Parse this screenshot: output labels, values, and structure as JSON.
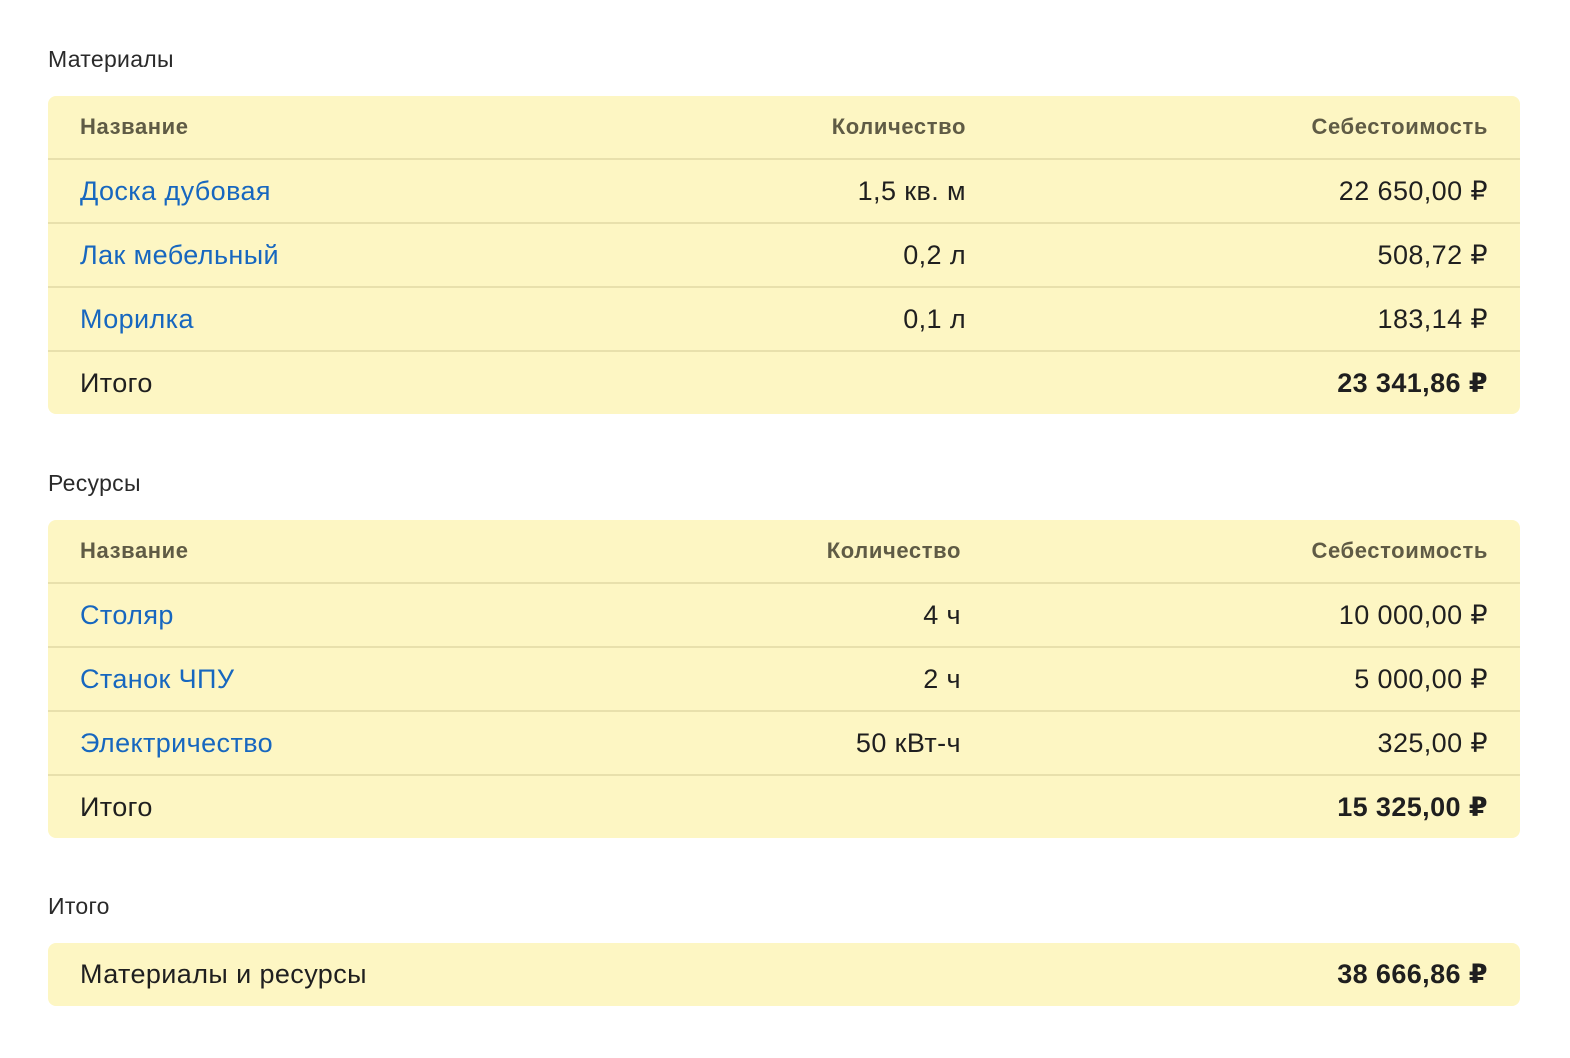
{
  "materials": {
    "title": "Материалы",
    "headers": {
      "name": "Название",
      "qty": "Количество",
      "cost": "Себестоимость"
    },
    "rows": [
      {
        "name": "Доска дубовая",
        "qty": "1,5 кв. м",
        "cost": "22 650,00 ₽"
      },
      {
        "name": "Лак мебельный",
        "qty": "0,2 л",
        "cost": "508,72 ₽"
      },
      {
        "name": "Морилка",
        "qty": "0,1 л",
        "cost": "183,14 ₽"
      }
    ],
    "total_label": "Итого",
    "total": "23 341,86 ₽"
  },
  "resources": {
    "title": "Ресурсы",
    "headers": {
      "name": "Название",
      "qty": "Количество",
      "cost": "Себестоимость"
    },
    "rows": [
      {
        "name": "Столяр",
        "qty": "4 ч",
        "cost": "10 000,00 ₽"
      },
      {
        "name": "Станок ЧПУ",
        "qty": "2 ч",
        "cost": "5 000,00 ₽"
      },
      {
        "name": "Электричество",
        "qty": "50 кВт-ч",
        "cost": "325,00 ₽"
      }
    ],
    "total_label": "Итого",
    "total": "15 325,00 ₽"
  },
  "summary": {
    "title": "Итого",
    "label": "Материалы и ресурсы",
    "total": "38 666,86 ₽"
  }
}
